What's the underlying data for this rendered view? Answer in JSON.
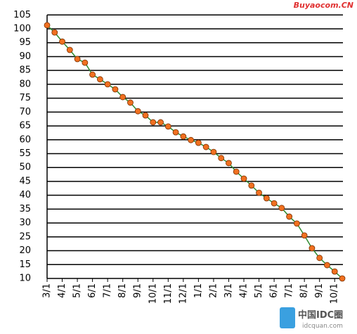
{
  "chart_data": {
    "type": "line",
    "categories": [
      "3/1",
      null,
      "4/1",
      null,
      "5/1",
      null,
      "6/1",
      null,
      "7/1",
      null,
      "8/1",
      null,
      "9/1",
      null,
      "10/1",
      null,
      "11/1",
      null,
      "12/1",
      null,
      "1/1",
      null,
      "2/1",
      null,
      "3/1",
      null,
      "4/1",
      null,
      "5/1",
      null,
      "6/1",
      null,
      "7/1",
      null,
      "8/1",
      null,
      "9/1",
      null,
      "10/1",
      null
    ],
    "series": [
      {
        "color": "#2e8b2e",
        "marker_color": "#f07020",
        "values": [
          101.3,
          98.7,
          95.4,
          92.4,
          89.1,
          87.8,
          83.5,
          81.8,
          80.0,
          78.2,
          75.4,
          73.4,
          70.3,
          68.8,
          66.3,
          66.3,
          64.8,
          62.7,
          61.2,
          59.9,
          58.9,
          57.4,
          55.6,
          53.4,
          51.6,
          48.5,
          46.0,
          43.5,
          40.9,
          38.9,
          37.1,
          35.4,
          32.3,
          29.8,
          25.5,
          20.9,
          17.4,
          14.8,
          12.5,
          10.0
        ]
      }
    ],
    "ylim": [
      10,
      105
    ],
    "yticks": [
      10,
      15,
      20,
      25,
      30,
      35,
      40,
      45,
      50,
      55,
      60,
      65,
      70,
      75,
      80,
      85,
      90,
      95,
      100,
      105
    ],
    "grid": true,
    "watermarks": [
      "Buyaocom.CN",
      "中国IDC圈",
      "idcquan.com"
    ]
  }
}
